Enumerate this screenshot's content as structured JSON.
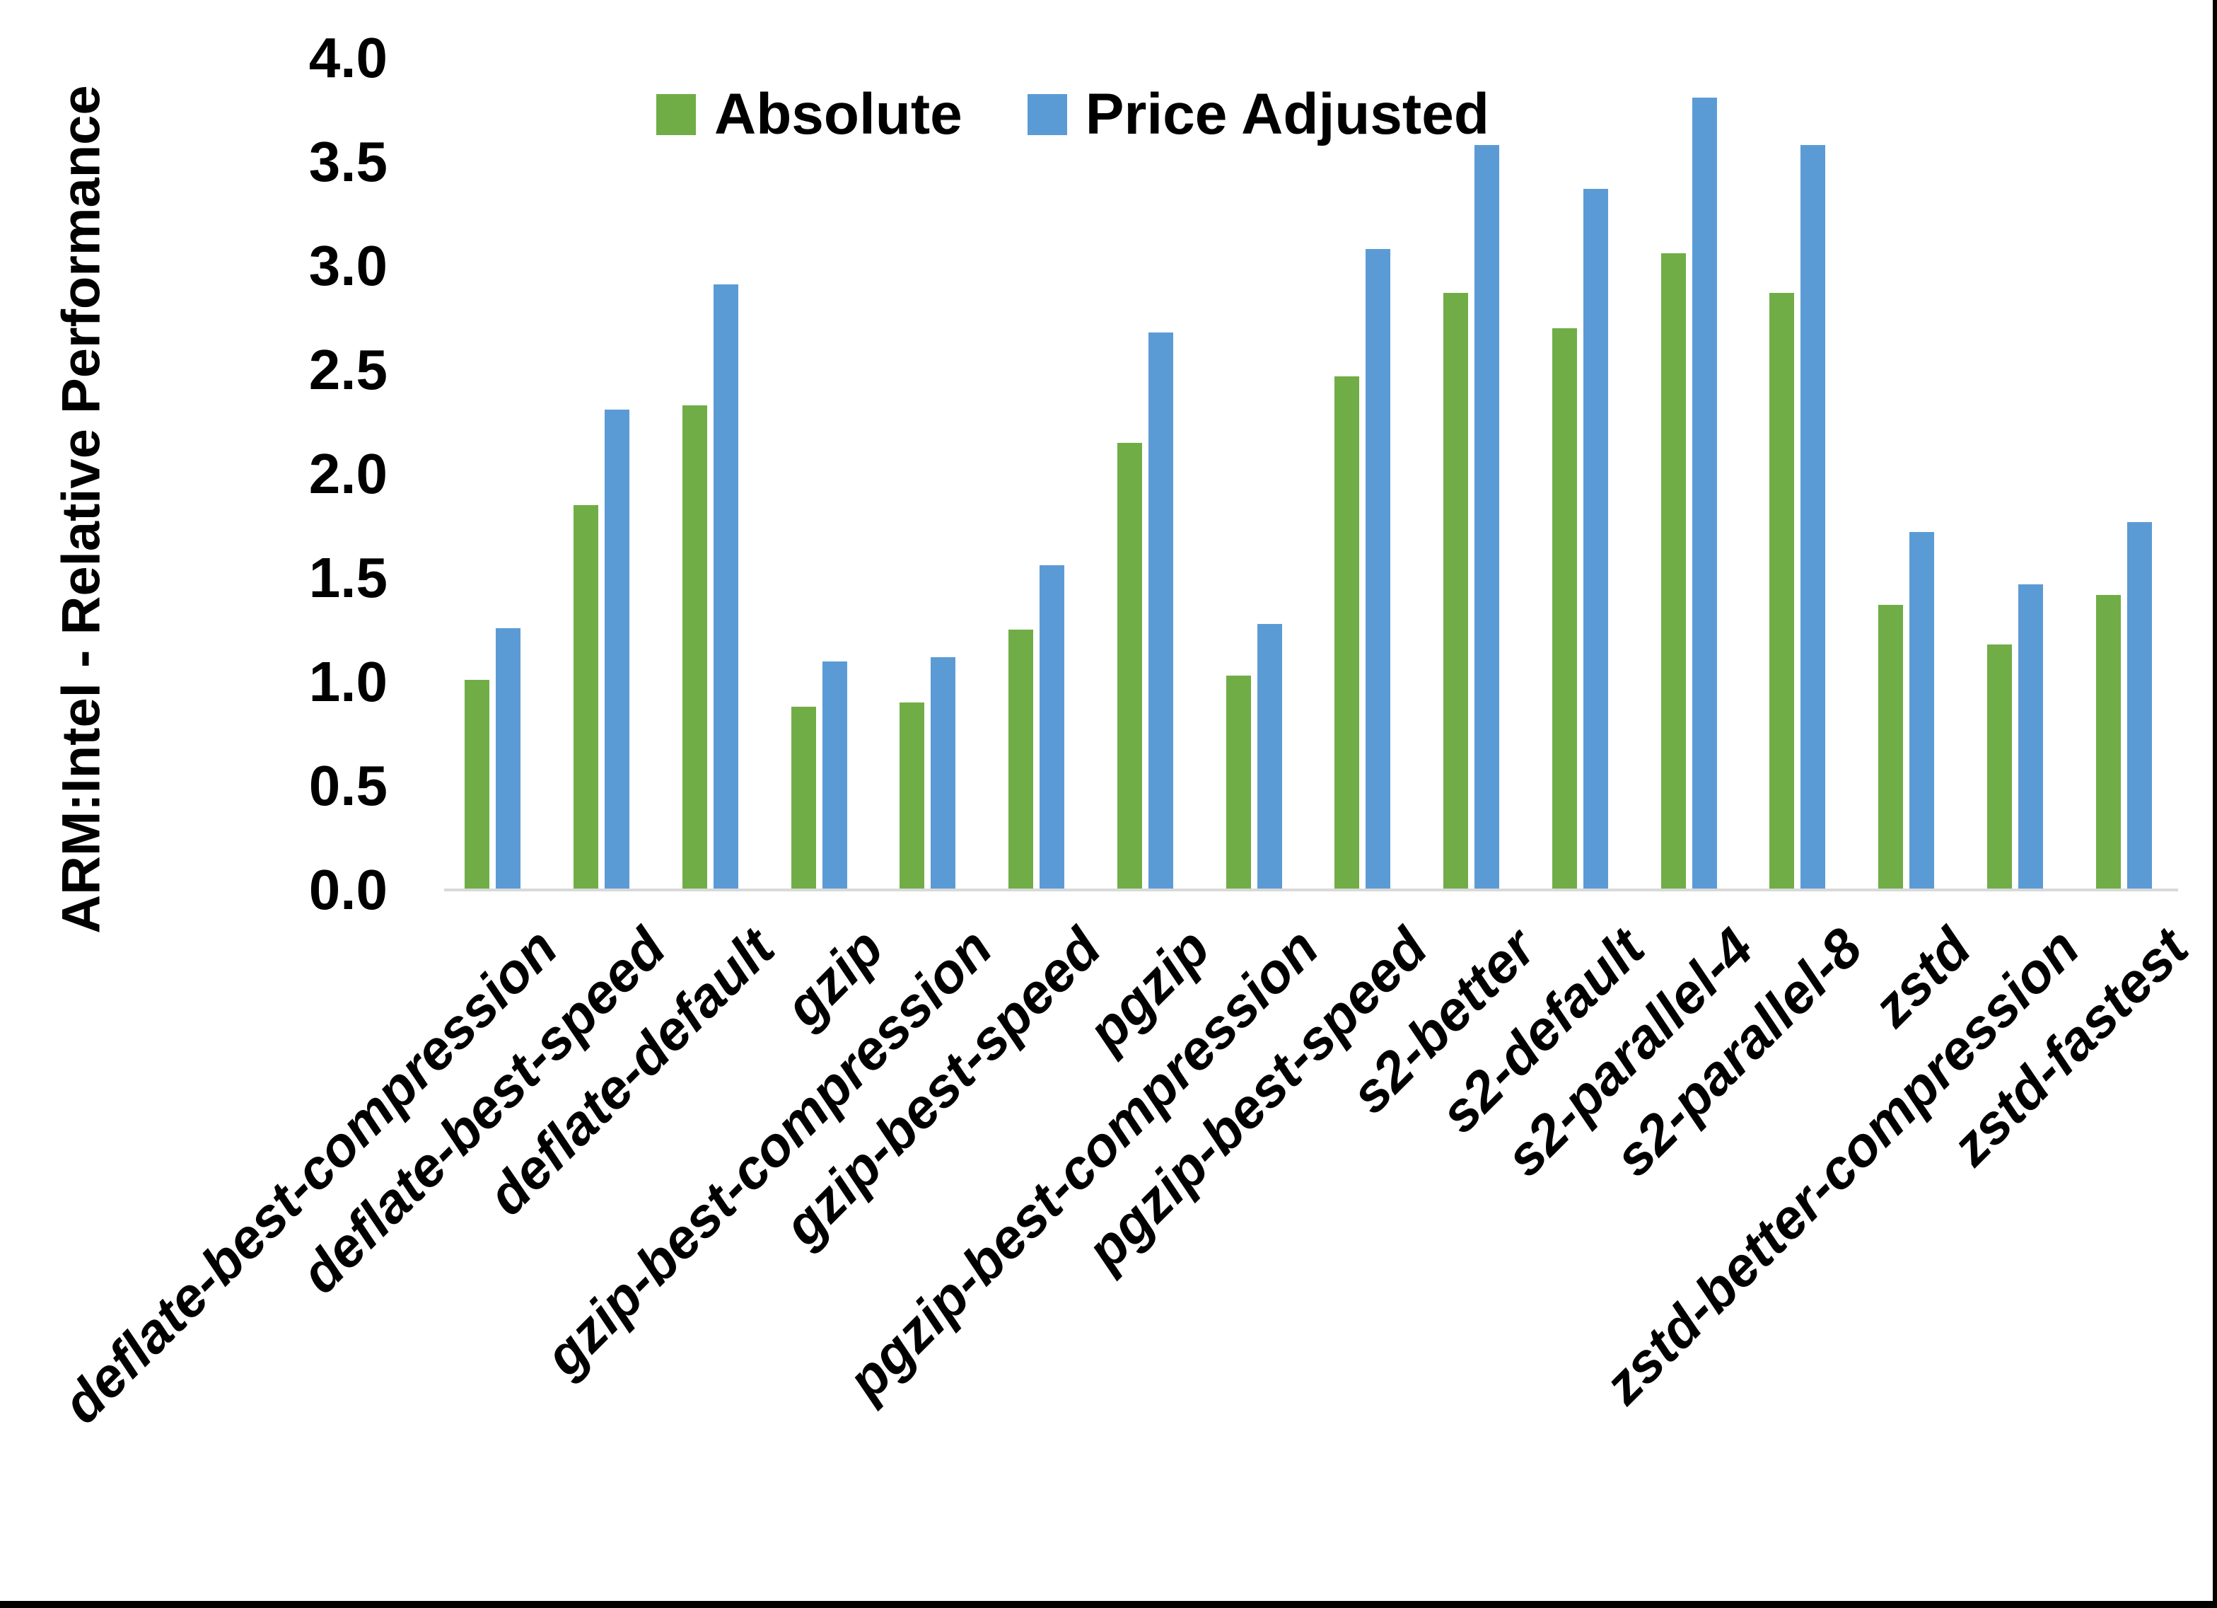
{
  "chart_data": {
    "type": "bar",
    "title": "",
    "ylabel": "ARM:Intel - Relative Performance",
    "xlabel": "",
    "ylim": [
      0.0,
      4.0
    ],
    "ytick_step": 0.5,
    "yticks": [
      "0.0",
      "0.5",
      "1.0",
      "1.5",
      "2.0",
      "2.5",
      "3.0",
      "3.5",
      "4.0"
    ],
    "grid": false,
    "legend_position": "top-center",
    "categories": [
      "deflate-best-compression",
      "deflate-best-speed",
      "deflate-default",
      "gzip",
      "gzip-best-compression",
      "gzip-best-speed",
      "pgzip",
      "pgzip-best-compression",
      "pgzip-best-speed",
      "s2-better",
      "s2-default",
      "s2-parallel-4",
      "s2-parallel-8",
      "zstd",
      "zstd-better-compression",
      "zstd-fastest"
    ],
    "series": [
      {
        "name": "Absolute",
        "color": "#70AD47",
        "values": [
          1.01,
          1.85,
          2.33,
          0.88,
          0.9,
          1.25,
          2.15,
          1.03,
          2.47,
          2.87,
          2.7,
          3.06,
          2.87,
          1.37,
          1.18,
          1.42
        ]
      },
      {
        "name": "Price Adjusted",
        "color": "#5B9BD5",
        "values": [
          1.26,
          2.31,
          2.91,
          1.1,
          1.12,
          1.56,
          2.68,
          1.28,
          3.08,
          3.58,
          3.37,
          3.81,
          3.58,
          1.72,
          1.47,
          1.77
        ]
      }
    ],
    "axis_line_color": "#D9D9D9",
    "text_color": "#000000"
  },
  "frame": {
    "bottom_edge_color": "#000000",
    "right_edge_color": "#000000"
  }
}
